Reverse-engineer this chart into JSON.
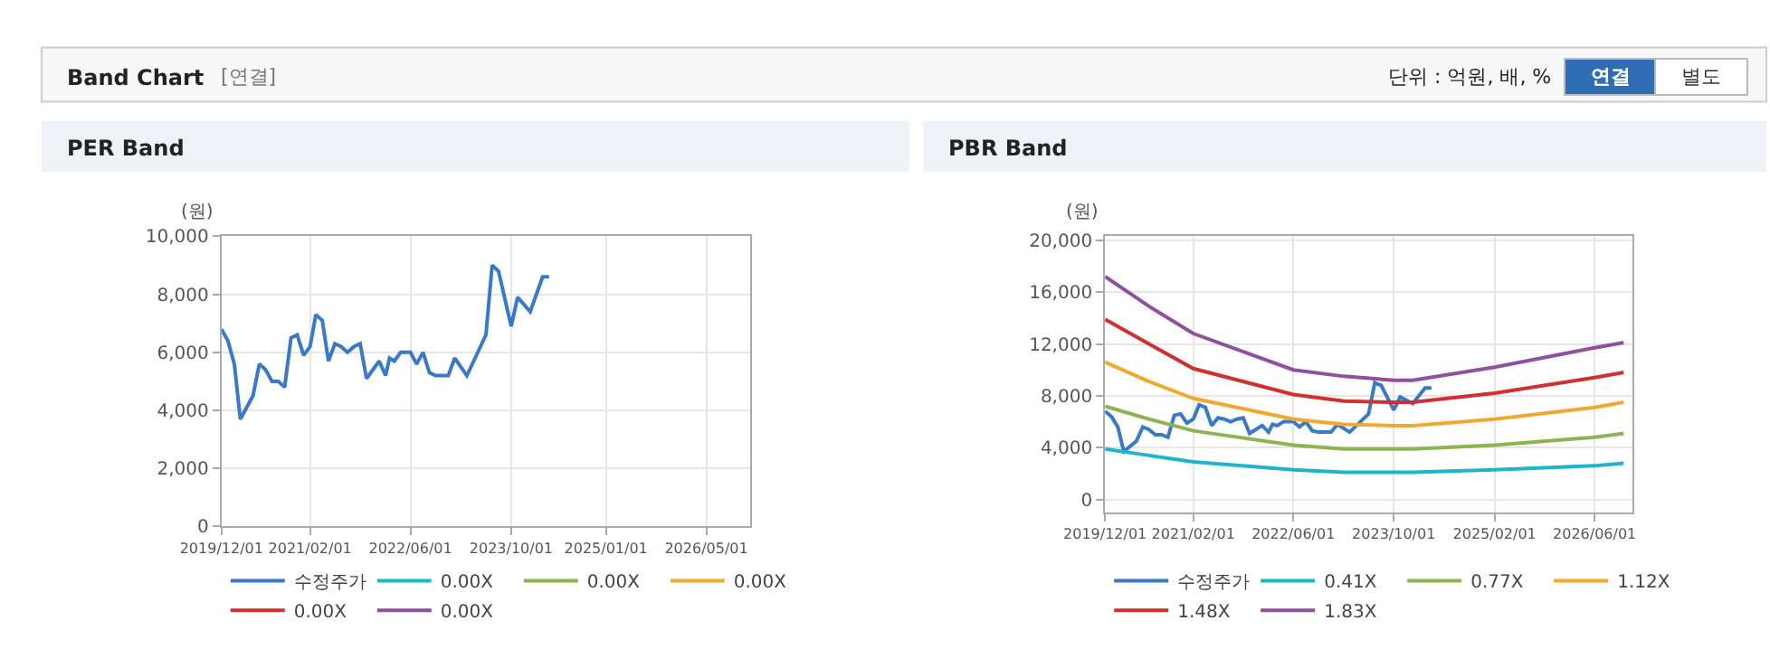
{
  "chart_data": [
    {
      "type": "line",
      "title": "PER Band",
      "ylabel": "(원)",
      "annotations": [
        "Band Chart",
        "[연결]",
        "단위 : 억원, 배, %",
        "연결",
        "별도"
      ],
      "x": [
        "2019-12-01",
        "2020-01-01",
        "2020-02-01",
        "2020-03-01",
        "2020-05-01",
        "2020-06-01",
        "2020-07-01",
        "2020-08-01",
        "2020-09-01",
        "2020-10-01",
        "2020-11-01",
        "2020-12-01",
        "2021-01-01",
        "2021-02-01",
        "2021-03-01",
        "2021-04-01",
        "2021-05-01",
        "2021-06-01",
        "2021-07-01",
        "2021-08-01",
        "2021-09-01",
        "2021-10-01",
        "2021-11-01",
        "2022-01-01",
        "2022-02-01",
        "2022-02-20",
        "2022-03-15",
        "2022-04-15",
        "2022-06-01",
        "2022-07-01",
        "2022-08-01",
        "2022-09-01",
        "2022-10-01",
        "2022-12-01",
        "2023-01-01",
        "2023-03-01",
        "2023-06-01",
        "2023-07-01",
        "2023-08-01",
        "2023-10-01",
        "2023-11-01",
        "2024-01-01",
        "2024-03-01",
        "2024-04-01"
      ],
      "series": [
        {
          "name": "수정주가",
          "color": "#3a78c8",
          "values": [
            6800,
            6400,
            5600,
            3700,
            4500,
            5600,
            5400,
            5000,
            5000,
            4800,
            6500,
            6600,
            5900,
            6200,
            7300,
            7100,
            5700,
            6300,
            6200,
            6000,
            6200,
            6300,
            5100,
            5700,
            5200,
            5800,
            5700,
            6000,
            6000,
            5600,
            6000,
            5300,
            5200,
            5200,
            5800,
            5200,
            6600,
            9000,
            8800,
            6900,
            7900,
            7400,
            8600,
            8600
          ]
        },
        {
          "name": "0.00X",
          "color": "#1fb5c8",
          "values": [
            null,
            null,
            null,
            null,
            null,
            null,
            null,
            null,
            null,
            null,
            null,
            null,
            null,
            null,
            null,
            null,
            null,
            null,
            null,
            null,
            null,
            null,
            null,
            null,
            null,
            null,
            null,
            null,
            null,
            null,
            null,
            null,
            null,
            null,
            null,
            null,
            null,
            null,
            null,
            null,
            null,
            null,
            null,
            null
          ]
        },
        {
          "name": "0.00X",
          "color": "#8db450",
          "values": [
            null,
            null,
            null,
            null,
            null,
            null,
            null,
            null,
            null,
            null,
            null,
            null,
            null,
            null,
            null,
            null,
            null,
            null,
            null,
            null,
            null,
            null,
            null,
            null,
            null,
            null,
            null,
            null,
            null,
            null,
            null,
            null,
            null,
            null,
            null,
            null,
            null,
            null,
            null,
            null,
            null,
            null,
            null,
            null
          ]
        },
        {
          "name": "0.00X",
          "color": "#f0a830",
          "values": [
            null,
            null,
            null,
            null,
            null,
            null,
            null,
            null,
            null,
            null,
            null,
            null,
            null,
            null,
            null,
            null,
            null,
            null,
            null,
            null,
            null,
            null,
            null,
            null,
            null,
            null,
            null,
            null,
            null,
            null,
            null,
            null,
            null,
            null,
            null,
            null,
            null,
            null,
            null,
            null,
            null,
            null,
            null,
            null
          ]
        },
        {
          "name": "0.00X",
          "color": "#d03030",
          "values": [
            null,
            null,
            null,
            null,
            null,
            null,
            null,
            null,
            null,
            null,
            null,
            null,
            null,
            null,
            null,
            null,
            null,
            null,
            null,
            null,
            null,
            null,
            null,
            null,
            null,
            null,
            null,
            null,
            null,
            null,
            null,
            null,
            null,
            null,
            null,
            null,
            null,
            null,
            null,
            null,
            null,
            null,
            null,
            null
          ]
        },
        {
          "name": "0.00X",
          "color": "#9050a0",
          "values": [
            null,
            null,
            null,
            null,
            null,
            null,
            null,
            null,
            null,
            null,
            null,
            null,
            null,
            null,
            null,
            null,
            null,
            null,
            null,
            null,
            null,
            null,
            null,
            null,
            null,
            null,
            null,
            null,
            null,
            null,
            null,
            null,
            null,
            null,
            null,
            null,
            null,
            null,
            null,
            null,
            null,
            null,
            null,
            null
          ]
        }
      ],
      "xlim": [
        "2019-12-01",
        "2026-12-01"
      ],
      "xticks": [
        {
          "value": "2019-12-01",
          "label": "2019/12/01"
        },
        {
          "value": "2021-02-01",
          "label": "2021/02/01"
        },
        {
          "value": "2022-06-01",
          "label": "2022/06/01"
        },
        {
          "value": "2023-10-01",
          "label": "2023/10/01"
        },
        {
          "value": "2025-01-01",
          "label": "2025/01/01"
        },
        {
          "value": "2026-05-01",
          "label": "2026/05/01"
        }
      ],
      "ylim": [
        0,
        10000
      ],
      "yticks": [
        0,
        {
          "value": 2000,
          "label": "2,000"
        },
        {
          "value": 4000,
          "label": "4,000"
        },
        {
          "value": 6000,
          "label": "6,000"
        },
        {
          "value": 8000,
          "label": "8,000"
        },
        {
          "value": 10000,
          "label": "10,000"
        }
      ],
      "grid": true,
      "legend": "bottom",
      "marker": "none",
      "line_style": "solid"
    },
    {
      "type": "line",
      "title": "PBR Band",
      "ylabel": "(원)",
      "series": [
        {
          "name": "수정주가",
          "color": "#3a78c8",
          "x": [
            "2019-12-01",
            "2020-01-01",
            "2020-02-01",
            "2020-03-01",
            "2020-05-01",
            "2020-06-01",
            "2020-07-01",
            "2020-08-01",
            "2020-09-01",
            "2020-10-01",
            "2020-11-01",
            "2020-12-01",
            "2021-01-01",
            "2021-02-01",
            "2021-03-01",
            "2021-04-01",
            "2021-05-01",
            "2021-06-01",
            "2021-07-01",
            "2021-08-01",
            "2021-09-01",
            "2021-10-01",
            "2021-11-01",
            "2022-01-01",
            "2022-02-01",
            "2022-02-20",
            "2022-03-15",
            "2022-04-15",
            "2022-06-01",
            "2022-07-01",
            "2022-08-01",
            "2022-09-01",
            "2022-10-01",
            "2022-12-01",
            "2023-01-01",
            "2023-03-01",
            "2023-06-01",
            "2023-07-01",
            "2023-08-01",
            "2023-10-01",
            "2023-11-01",
            "2024-01-01",
            "2024-03-01",
            "2024-04-01"
          ],
          "values": [
            6800,
            6400,
            5600,
            3700,
            4500,
            5600,
            5400,
            5000,
            5000,
            4800,
            6500,
            6600,
            5900,
            6200,
            7300,
            7100,
            5700,
            6300,
            6200,
            6000,
            6200,
            6300,
            5100,
            5700,
            5200,
            5800,
            5700,
            6000,
            6000,
            5600,
            6000,
            5300,
            5200,
            5200,
            5800,
            5200,
            6600,
            9000,
            8800,
            6900,
            7900,
            7400,
            8600,
            8600
          ]
        },
        {
          "name": "0.41X",
          "color": "#1fb5c8",
          "x": [
            "2019-12-01",
            "2020-07-01",
            "2021-02-01",
            "2022-06-01",
            "2023-02-01",
            "2023-10-01",
            "2024-01-01",
            "2025-02-01",
            "2026-06-01",
            "2026-10-20"
          ],
          "values": [
            3900,
            3400,
            2900,
            2300,
            2100,
            2100,
            2100,
            2300,
            2600,
            2800
          ]
        },
        {
          "name": "0.77X",
          "color": "#8db450",
          "x": [
            "2019-12-01",
            "2020-07-01",
            "2021-02-01",
            "2022-06-01",
            "2023-02-01",
            "2023-10-01",
            "2024-01-01",
            "2025-02-01",
            "2026-06-01",
            "2026-10-20"
          ],
          "values": [
            7200,
            6200,
            5300,
            4200,
            3900,
            3900,
            3900,
            4200,
            4800,
            5100
          ]
        },
        {
          "name": "1.12X",
          "color": "#f0a830",
          "x": [
            "2019-12-01",
            "2020-07-01",
            "2021-02-01",
            "2022-06-01",
            "2023-02-01",
            "2023-10-01",
            "2024-01-01",
            "2025-02-01",
            "2026-06-01",
            "2026-10-20"
          ],
          "values": [
            10600,
            9100,
            7800,
            6200,
            5800,
            5700,
            5700,
            6200,
            7100,
            7500
          ]
        },
        {
          "name": "1.48X",
          "color": "#d03030",
          "x": [
            "2019-12-01",
            "2020-07-01",
            "2021-02-01",
            "2022-06-01",
            "2023-02-01",
            "2023-10-01",
            "2024-01-01",
            "2025-02-01",
            "2026-06-01",
            "2026-10-20"
          ],
          "values": [
            13900,
            12000,
            10100,
            8100,
            7600,
            7500,
            7500,
            8200,
            9400,
            9800
          ]
        },
        {
          "name": "1.83X",
          "color": "#9050a0",
          "x": [
            "2019-12-01",
            "2020-07-01",
            "2021-02-01",
            "2022-06-01",
            "2023-02-01",
            "2023-10-01",
            "2024-01-01",
            "2025-02-01",
            "2026-06-01",
            "2026-10-20"
          ],
          "values": [
            17200,
            14900,
            12800,
            10000,
            9500,
            9200,
            9200,
            10200,
            11700,
            12100
          ]
        }
      ],
      "xlim": [
        "2019-12-01",
        "2026-12-01"
      ],
      "xticks": [
        {
          "value": "2019-12-01",
          "label": "2019/12/01"
        },
        {
          "value": "2021-02-01",
          "label": "2021/02/01"
        },
        {
          "value": "2022-06-01",
          "label": "2022/06/01"
        },
        {
          "value": "2023-10-01",
          "label": "2023/10/01"
        },
        {
          "value": "2025-02-01",
          "label": "2025/02/01"
        },
        {
          "value": "2026-06-01",
          "label": "2026/06/01"
        }
      ],
      "ylim": [
        -1000,
        20300
      ],
      "yticks": [
        0,
        {
          "value": 4000,
          "label": "4,000"
        },
        {
          "value": 8000,
          "label": "8,000"
        },
        {
          "value": 12000,
          "label": "12,000"
        },
        {
          "value": 16000,
          "label": "16,000"
        },
        {
          "value": 20000,
          "label": "20,000"
        }
      ],
      "grid": true,
      "legend": "bottom",
      "marker": "none",
      "line_style": "solid"
    }
  ]
}
